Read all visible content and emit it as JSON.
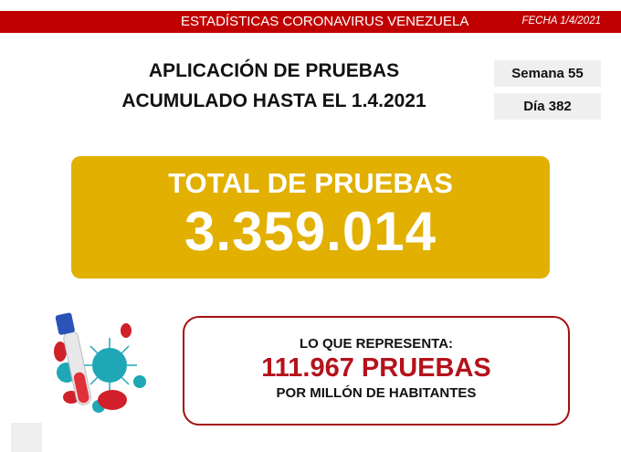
{
  "header": {
    "title": "ESTADÍSTICAS CORONAVIRUS VENEZUELA",
    "date": "FECHA 1/4/2021"
  },
  "main": {
    "title_line1": "APLICACIÓN DE PRUEBAS",
    "title_line2": "ACUMULADO HASTA EL 1.4.2021"
  },
  "badges": {
    "week": "Semana 55",
    "day": "Día 382"
  },
  "total": {
    "label": "TOTAL DE PRUEBAS",
    "value": "3.359.014"
  },
  "per_million": {
    "intro": "LO QUE REPRESENTA:",
    "value": "111.967 PRUEBAS",
    "suffix": "POR MILLÓN DE HABITANTES"
  },
  "colors": {
    "banner": "#c00000",
    "gold": "#e2b000",
    "accent_red": "#b5121b",
    "virus": "#1fa7b5"
  },
  "illustration": "test-tube-virus-icon"
}
